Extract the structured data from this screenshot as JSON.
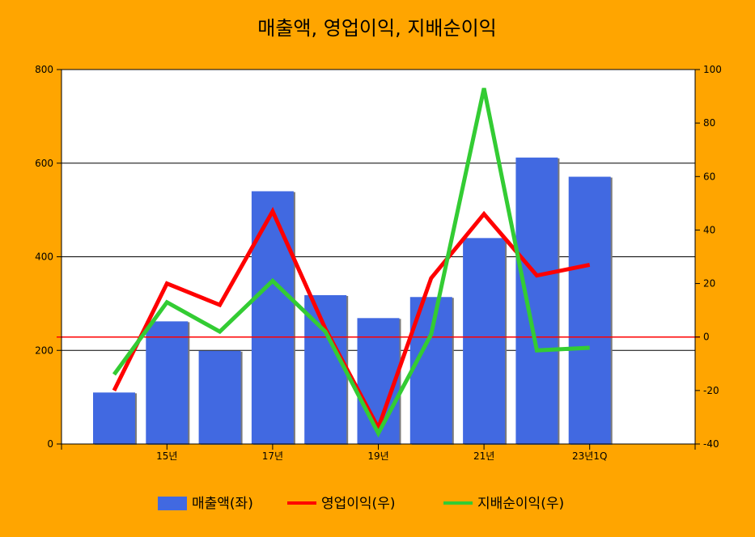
{
  "chart_data": {
    "type": "bar",
    "title": "매출액, 영업이익, 지배순이익",
    "categories": [
      "",
      "15년",
      "",
      "17년",
      "",
      "19년",
      "",
      "21년",
      "",
      "23년1Q"
    ],
    "left_axis": {
      "min": 0,
      "max": 800,
      "ticks": [
        0,
        200,
        400,
        600,
        800
      ]
    },
    "right_axis": {
      "min": -40,
      "max": 100,
      "ticks": [
        -40,
        -20,
        0,
        20,
        40,
        60,
        80,
        100
      ]
    },
    "grid": true,
    "zero_line_right_axis": 0,
    "legend_position": "bottom",
    "series": [
      {
        "name": "매출액(좌)",
        "type": "bar",
        "axis": "left",
        "color": "#4169E1",
        "values": [
          110,
          262,
          199,
          540,
          318,
          269,
          314,
          440,
          612,
          571
        ]
      },
      {
        "name": "영업이익(우)",
        "type": "line",
        "axis": "right",
        "color": "#FF0000",
        "values": [
          -20,
          20,
          12,
          47,
          3,
          -34,
          22,
          46,
          23,
          27
        ]
      },
      {
        "name": "지배순이익(우)",
        "type": "line",
        "axis": "right",
        "color": "#33CC33",
        "values": [
          -14,
          13,
          2,
          21,
          2,
          -36,
          1,
          93,
          -5,
          -4
        ]
      }
    ]
  }
}
